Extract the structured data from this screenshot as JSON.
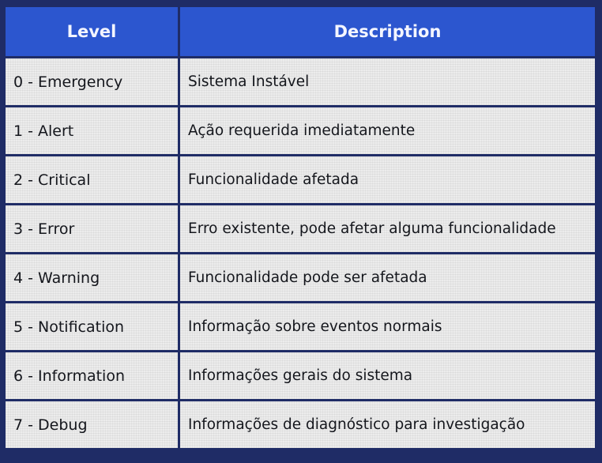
{
  "table": {
    "headers": {
      "level": "Level",
      "description": "Description"
    },
    "rows": [
      {
        "level": "0 - Emergency",
        "description": "Sistema Instável"
      },
      {
        "level": "1 - Alert",
        "description": "Ação requerida imediatamente"
      },
      {
        "level": "2 - Critical",
        "description": "Funcionalidade afetada"
      },
      {
        "level": "3 - Error",
        "description": "Erro existente, pode afetar alguma funcionalidade"
      },
      {
        "level": "4 - Warning",
        "description": "Funcionalidade pode ser afetada"
      },
      {
        "level": "5 - Notification",
        "description": "Informação sobre eventos normais"
      },
      {
        "level": "6 - Information",
        "description": "Informações gerais do sistema"
      },
      {
        "level": "7 - Debug",
        "description": "Informações de diagnóstico para investigação"
      }
    ]
  },
  "colors": {
    "header_bg": "#2c56cf",
    "border": "#1f2c66",
    "cell_bg": "#ececec"
  }
}
